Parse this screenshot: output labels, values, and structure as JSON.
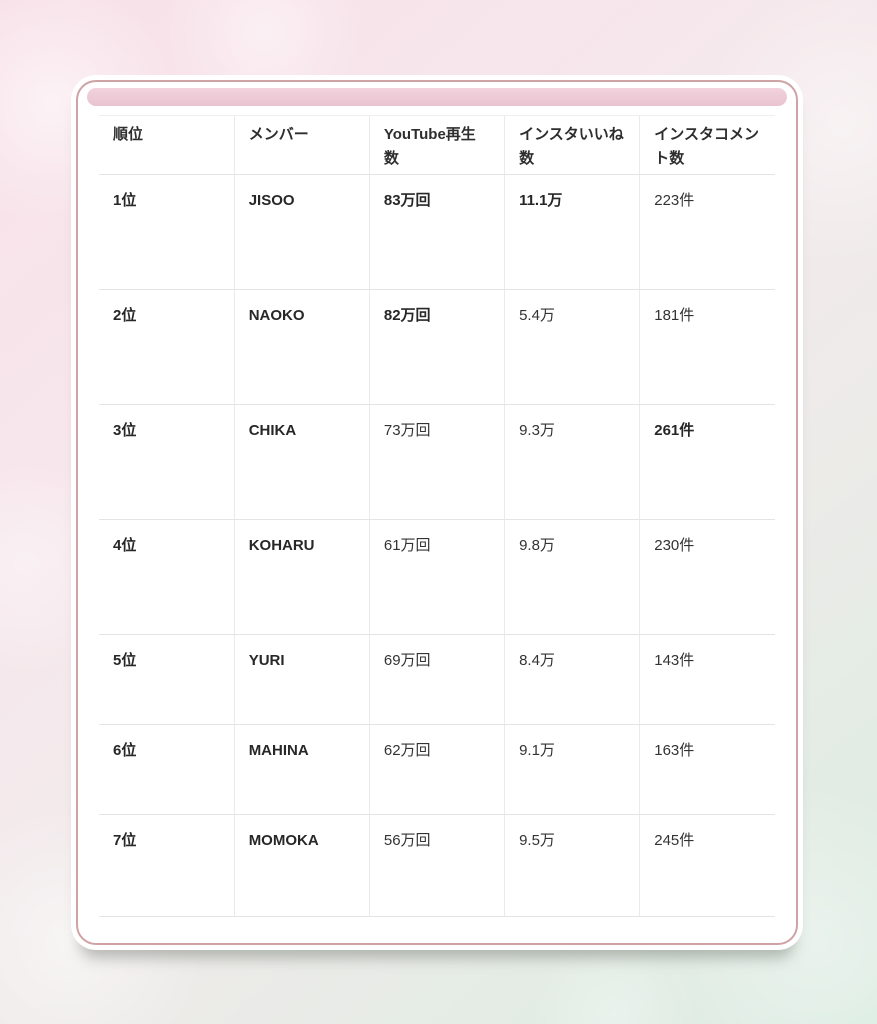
{
  "colors": {
    "card_border": "#cfa2a4",
    "accent_bar_top": "#f2d2dc",
    "accent_bar_bottom": "#e9c4d0",
    "background_top_left": "#f8e1e9",
    "background_bottom_right": "#dbece2",
    "text": "#333333",
    "grid_line": "#e4e4e4"
  },
  "table": {
    "columns": [
      {
        "key": "rank",
        "label": "順位"
      },
      {
        "key": "member",
        "label": "メンバー"
      },
      {
        "key": "youtube",
        "label": "YouTube再生数"
      },
      {
        "key": "likes",
        "label": "インスタいいね数"
      },
      {
        "key": "comments",
        "label": "インスタコメント数"
      }
    ],
    "rows": [
      {
        "rank": "1位",
        "member": "JISOO",
        "youtube": "83万回",
        "likes": "11.1万",
        "comments": "223件",
        "bold_fields": [
          "rank",
          "member",
          "youtube",
          "likes"
        ]
      },
      {
        "rank": "2位",
        "member": "NAOKO",
        "youtube": "82万回",
        "likes": "5.4万",
        "comments": "181件",
        "bold_fields": [
          "rank",
          "member",
          "youtube"
        ]
      },
      {
        "rank": "3位",
        "member": "CHIKA",
        "youtube": "73万回",
        "likes": "9.3万",
        "comments": "261件",
        "bold_fields": [
          "rank",
          "member",
          "comments"
        ]
      },
      {
        "rank": "4位",
        "member": "KOHARU",
        "youtube": "61万回",
        "likes": "9.8万",
        "comments": "230件",
        "bold_fields": [
          "rank",
          "member"
        ]
      },
      {
        "rank": "5位",
        "member": "YURI",
        "youtube": "69万回",
        "likes": "8.4万",
        "comments": "143件",
        "bold_fields": [
          "rank",
          "member"
        ]
      },
      {
        "rank": "6位",
        "member": "MAHINA",
        "youtube": "62万回",
        "likes": "9.1万",
        "comments": "163件",
        "bold_fields": [
          "rank",
          "member"
        ]
      },
      {
        "rank": "7位",
        "member": "MOMOKA",
        "youtube": "56万回",
        "likes": "9.5万",
        "comments": "245件",
        "bold_fields": [
          "rank",
          "member"
        ]
      }
    ]
  }
}
